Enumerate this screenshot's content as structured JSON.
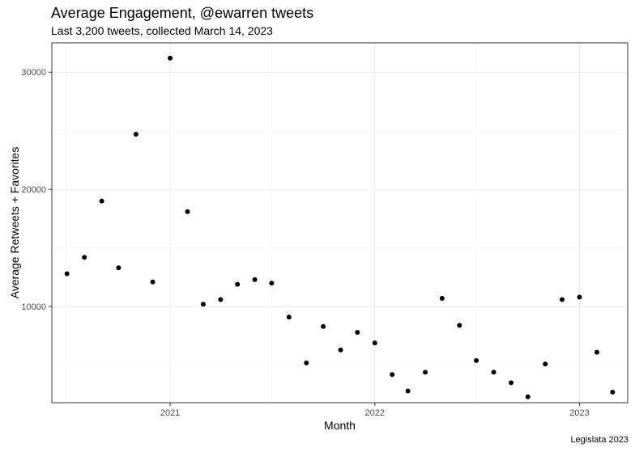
{
  "chart_data": {
    "type": "scatter",
    "title": "Average Engagement, @ewarren tweets",
    "subtitle": "Last 3,200 tweets, collected March 14, 2023",
    "xlabel": "Month",
    "ylabel": "Average Retweets + Favorites",
    "caption": "Legislata 2023",
    "xlim": [
      "2020-06-04",
      "2023-03-28"
    ],
    "ylim": [
      1800,
      32500
    ],
    "x_ticks": [
      {
        "value": "2021-01-01",
        "label": "2021"
      },
      {
        "value": "2022-01-01",
        "label": "2022"
      },
      {
        "value": "2023-01-01",
        "label": "2023"
      }
    ],
    "x_minor": [
      "2020-07-01",
      "2021-07-01",
      "2022-07-01"
    ],
    "y_ticks": [
      {
        "value": 10000,
        "label": "10000"
      },
      {
        "value": 20000,
        "label": "20000"
      },
      {
        "value": 30000,
        "label": "30000"
      }
    ],
    "y_minor": [
      5000,
      15000,
      25000
    ],
    "grid": true,
    "points": [
      {
        "x": "2020-07-01",
        "y": 12800
      },
      {
        "x": "2020-08-01",
        "y": 14200
      },
      {
        "x": "2020-09-01",
        "y": 19000
      },
      {
        "x": "2020-10-01",
        "y": 13300
      },
      {
        "x": "2020-11-01",
        "y": 24700
      },
      {
        "x": "2020-12-01",
        "y": 12100
      },
      {
        "x": "2021-01-01",
        "y": 31200
      },
      {
        "x": "2021-02-01",
        "y": 18100
      },
      {
        "x": "2021-03-01",
        "y": 10200
      },
      {
        "x": "2021-04-01",
        "y": 10600
      },
      {
        "x": "2021-05-01",
        "y": 11900
      },
      {
        "x": "2021-06-01",
        "y": 12300
      },
      {
        "x": "2021-07-01",
        "y": 12000
      },
      {
        "x": "2021-08-01",
        "y": 9100
      },
      {
        "x": "2021-09-01",
        "y": 5200
      },
      {
        "x": "2021-10-01",
        "y": 8300
      },
      {
        "x": "2021-11-01",
        "y": 6300
      },
      {
        "x": "2021-12-01",
        "y": 7800
      },
      {
        "x": "2022-01-01",
        "y": 6900
      },
      {
        "x": "2022-02-01",
        "y": 4200
      },
      {
        "x": "2022-03-01",
        "y": 2800
      },
      {
        "x": "2022-04-01",
        "y": 4400
      },
      {
        "x": "2022-05-01",
        "y": 10700
      },
      {
        "x": "2022-06-01",
        "y": 8400
      },
      {
        "x": "2022-07-01",
        "y": 5400
      },
      {
        "x": "2022-08-01",
        "y": 4400
      },
      {
        "x": "2022-09-01",
        "y": 3500
      },
      {
        "x": "2022-10-01",
        "y": 2300
      },
      {
        "x": "2022-11-01",
        "y": 5100
      },
      {
        "x": "2022-12-01",
        "y": 10600
      },
      {
        "x": "2023-01-01",
        "y": 10800
      },
      {
        "x": "2023-02-01",
        "y": 6100
      },
      {
        "x": "2023-03-01",
        "y": 2700
      }
    ]
  }
}
